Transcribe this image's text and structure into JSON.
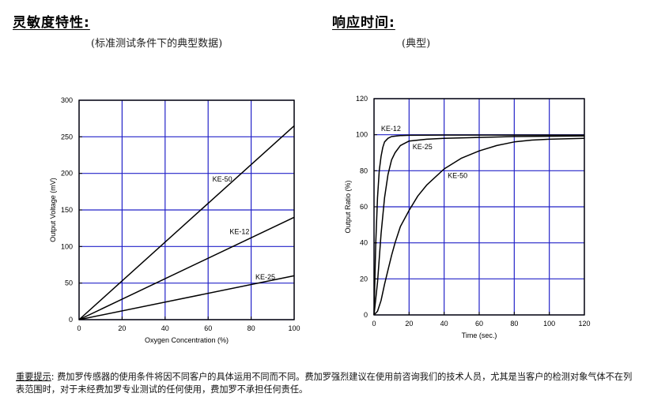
{
  "left": {
    "title": "灵敏度特性:",
    "subtitle": "(标准测试条件下的典型数据)"
  },
  "right": {
    "title": "响应时间:",
    "subtitle": "(典型)"
  },
  "footnote": {
    "label": "重要提示",
    "colon": ":",
    "text": " 费加罗传感器的使用条件将因不同客户的具体运用不同而不同。费加罗强烈建议在使用前咨询我们的技术人员，尤其是当客户的检测对象气体不在列表范围时，对于未经费加罗专业测试的任何使用，费加罗不承担任何责任。"
  },
  "chart_data": [
    {
      "type": "line",
      "xlabel": "Oxygen Concentration (%)",
      "ylabel": "Output Voltage (mV)",
      "xlim": [
        0,
        100
      ],
      "ylim": [
        0,
        300
      ],
      "xticks": [
        0,
        20,
        40,
        60,
        80,
        100
      ],
      "yticks": [
        0,
        50,
        100,
        150,
        200,
        250,
        300
      ],
      "grid": true,
      "grid_color": "#2323c8",
      "series": [
        {
          "name": "KE-50",
          "x": [
            0,
            100
          ],
          "y": [
            0,
            265
          ]
        },
        {
          "name": "KE-12",
          "x": [
            0,
            100
          ],
          "y": [
            0,
            140
          ]
        },
        {
          "name": "KE-25",
          "x": [
            0,
            100
          ],
          "y": [
            0,
            60
          ]
        }
      ],
      "annotations": [
        {
          "text": "KE-50",
          "x": 62,
          "y": 189
        },
        {
          "text": "KE-12",
          "x": 70,
          "y": 117
        },
        {
          "text": "KE-25",
          "x": 82,
          "y": 55
        }
      ]
    },
    {
      "type": "line",
      "xlabel": "Time (sec.)",
      "ylabel": "Output Ratio (%)",
      "xlim": [
        0,
        120
      ],
      "ylim": [
        0,
        120
      ],
      "xticks": [
        0,
        20,
        40,
        60,
        80,
        100,
        120
      ],
      "yticks": [
        0,
        20,
        40,
        60,
        80,
        100,
        120
      ],
      "grid": true,
      "grid_color": "#2323c8",
      "series": [
        {
          "name": "KE-12",
          "x": [
            0,
            1,
            2,
            3,
            4,
            5,
            6,
            8,
            10,
            15,
            20,
            40,
            60,
            120
          ],
          "y": [
            0,
            40,
            65,
            80,
            88,
            93,
            96,
            98,
            99,
            99.5,
            99.7,
            99.8,
            99.8,
            99.8
          ]
        },
        {
          "name": "KE-25",
          "x": [
            0,
            2,
            4,
            6,
            8,
            10,
            12,
            15,
            20,
            30,
            40,
            60,
            80,
            120
          ],
          "y": [
            0,
            18,
            45,
            65,
            78,
            86,
            90,
            94,
            96.5,
            97.5,
            98,
            98.5,
            99,
            99.3
          ]
        },
        {
          "name": "KE-50",
          "x": [
            0,
            2,
            4,
            6,
            8,
            10,
            12,
            15,
            20,
            25,
            30,
            40,
            50,
            60,
            70,
            80,
            90,
            100,
            120
          ],
          "y": [
            0,
            2,
            8,
            17,
            25,
            33,
            40,
            49,
            58,
            66,
            72,
            81,
            87,
            91,
            94,
            96,
            97,
            97.5,
            98
          ]
        }
      ],
      "annotations": [
        {
          "text": "KE-12",
          "x": 4,
          "y": 102
        },
        {
          "text": "KE-25",
          "x": 22,
          "y": 92
        },
        {
          "text": "KE-50",
          "x": 42,
          "y": 76
        }
      ]
    }
  ]
}
